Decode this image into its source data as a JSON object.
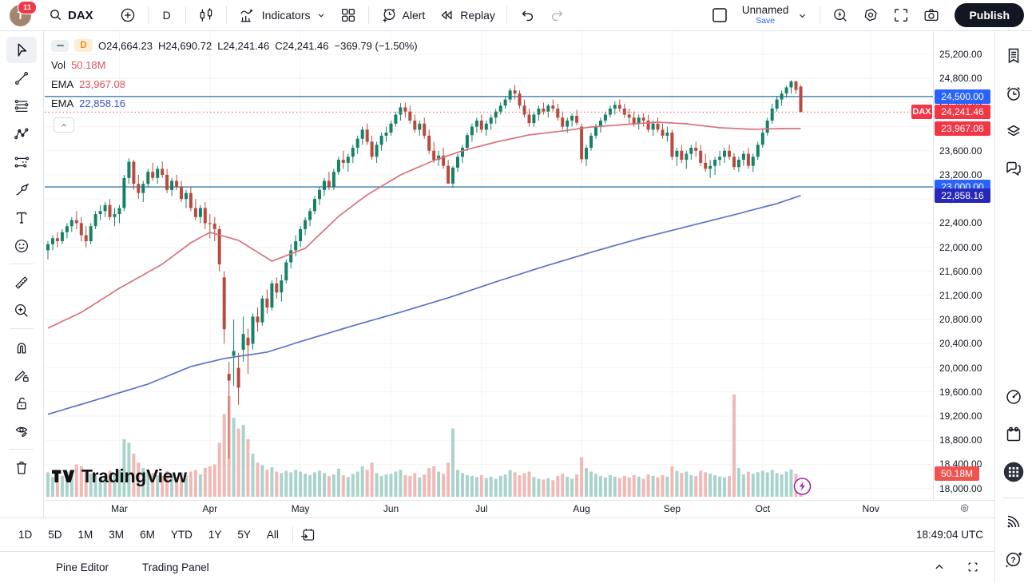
{
  "toolbar": {
    "avatar_initial": "T",
    "notifications": "11",
    "symbol": "DAX",
    "interval": "D",
    "indicators": "Indicators",
    "alert": "Alert",
    "replay": "Replay",
    "layout_name": "Unnamed",
    "save": "Save",
    "publish": "Publish"
  },
  "legend": {
    "interval": "D",
    "o": "O24,664.23",
    "h": "H24,690.72",
    "l": "L24,241.46",
    "c": "C24,241.46",
    "change": "−369.79 (−1.50%)",
    "vol_label": "Vol",
    "vol_value": "50.18M",
    "ema1_label": "EMA",
    "ema1_value": "23,967.08",
    "ema2_label": "EMA",
    "ema2_value": "22,858.16"
  },
  "watermark": "TradingView",
  "clock": "18:49:04 UTC",
  "timeframes": [
    "1D",
    "5D",
    "1M",
    "3M",
    "6M",
    "YTD",
    "1Y",
    "5Y",
    "All"
  ],
  "bottom": {
    "pine": "Pine Editor",
    "trading": "Trading Panel"
  },
  "chart_data": {
    "type": "candlestick",
    "symbol": "DAX",
    "interval": "D",
    "last_price": 24241.46,
    "volume_label": "50.18M",
    "axis": {
      "min": 18000,
      "max": 25200,
      "tick_step": 400,
      "ticks": [
        25200,
        24800,
        24400,
        24000,
        23600,
        23200,
        22800,
        22400,
        22000,
        21600,
        21200,
        20800,
        20400,
        20000,
        19600,
        19200,
        18800,
        18400,
        18000
      ],
      "tags": [
        {
          "price": 24500,
          "text": "24,500.00",
          "bg": "#2962ff"
        },
        {
          "price": 24241.46,
          "text": "24,241.46",
          "bg": "#f23645",
          "tag": "DAX"
        },
        {
          "price": 23967.08,
          "text": "23,967.08",
          "bg": "#f23645"
        },
        {
          "price": 23000,
          "text": "23,000.00",
          "bg": "#2962ff"
        },
        {
          "price": 22858.16,
          "text": "22,858.16",
          "bg": "#2828b8"
        },
        {
          "price": 18247,
          "text": "50.18M",
          "bg": "#ef5350",
          "narrow": true
        }
      ]
    },
    "months": [
      {
        "label": "Mar",
        "i": 15
      },
      {
        "label": "Apr",
        "i": 34
      },
      {
        "label": "May",
        "i": 53
      },
      {
        "label": "Jun",
        "i": 72
      },
      {
        "label": "Jul",
        "i": 91
      },
      {
        "label": "Aug",
        "i": 112
      },
      {
        "label": "Sep",
        "i": 131
      },
      {
        "label": "Oct",
        "i": 150
      },
      {
        "label": "Nov",
        "i": 172.7
      }
    ],
    "hlines": [
      {
        "price": 24500,
        "color": "#3f7cae"
      },
      {
        "price": 23000,
        "color": "#3f7cae"
      }
    ],
    "ema_red": {
      "label": "EMA",
      "value": 23967.08,
      "color": "#d9717d",
      "anchors": [
        [
          0,
          20658
        ],
        [
          7,
          20920
        ],
        [
          15,
          21320
        ],
        [
          24,
          21720
        ],
        [
          30,
          22075
        ],
        [
          34,
          22247
        ],
        [
          40,
          22115
        ],
        [
          47,
          21770
        ],
        [
          54,
          21982
        ],
        [
          61,
          22512
        ],
        [
          67,
          22870
        ],
        [
          74,
          23200
        ],
        [
          81,
          23440
        ],
        [
          87,
          23600
        ],
        [
          94,
          23744
        ],
        [
          101,
          23863
        ],
        [
          108,
          23929
        ],
        [
          114,
          23995
        ],
        [
          121,
          24035
        ],
        [
          128,
          24075
        ],
        [
          134,
          24048
        ],
        [
          141,
          23982
        ],
        [
          148,
          23956
        ],
        [
          154,
          23969
        ],
        [
          158,
          23967
        ]
      ]
    },
    "ema_blue": {
      "label": "EMA",
      "value": 22858.16,
      "color": "#5c74c6",
      "anchors": [
        [
          0,
          19230
        ],
        [
          10,
          19466
        ],
        [
          21,
          19731
        ],
        [
          30,
          20022
        ],
        [
          37,
          20155
        ],
        [
          46,
          20261
        ],
        [
          54,
          20460
        ],
        [
          64,
          20698
        ],
        [
          74,
          20923
        ],
        [
          84,
          21161
        ],
        [
          94,
          21426
        ],
        [
          104,
          21678
        ],
        [
          114,
          21916
        ],
        [
          124,
          22141
        ],
        [
          134,
          22340
        ],
        [
          144,
          22539
        ],
        [
          153,
          22724
        ],
        [
          158,
          22858
        ]
      ]
    },
    "colors": {
      "up": "#168169",
      "down": "#b84a3f",
      "vol_up": "#a9d3cc",
      "vol_down": "#f0b9b5",
      "hline": "#3f7cae",
      "last_price_line": "#e4606a",
      "boost": "#9c27b0"
    },
    "candles": [
      [
        21950,
        22100,
        21800,
        22050,
        68
      ],
      [
        22050,
        22200,
        21950,
        22150,
        55
      ],
      [
        22150,
        22250,
        22000,
        22100,
        62
      ],
      [
        22100,
        22300,
        22050,
        22250,
        58
      ],
      [
        22250,
        22400,
        22150,
        22350,
        70
      ],
      [
        22350,
        22500,
        22250,
        22450,
        66
      ],
      [
        22450,
        22600,
        22300,
        22400,
        90
      ],
      [
        22400,
        22500,
        22100,
        22200,
        85
      ],
      [
        22200,
        22350,
        22000,
        22100,
        75
      ],
      [
        22100,
        22400,
        22050,
        22350,
        64
      ],
      [
        22350,
        22600,
        22300,
        22550,
        58
      ],
      [
        22550,
        22700,
        22450,
        22600,
        52
      ],
      [
        22600,
        22750,
        22500,
        22700,
        60
      ],
      [
        22700,
        22800,
        22450,
        22500,
        72
      ],
      [
        22500,
        22650,
        22350,
        22550,
        66
      ],
      [
        22550,
        22700,
        22400,
        22650,
        74
      ],
      [
        22650,
        23200,
        22600,
        23150,
        160
      ],
      [
        23150,
        23475,
        23050,
        23419,
        150
      ],
      [
        23419,
        23450,
        22950,
        23050,
        120
      ],
      [
        23050,
        23200,
        22800,
        22900,
        95
      ],
      [
        22900,
        23100,
        22750,
        23050,
        80
      ],
      [
        23050,
        23300,
        23000,
        23250,
        70
      ],
      [
        23250,
        23400,
        23100,
        23150,
        66
      ],
      [
        23150,
        23350,
        23050,
        23300,
        60
      ],
      [
        23300,
        23420,
        23150,
        23200,
        58
      ],
      [
        23200,
        23300,
        22900,
        22950,
        72
      ],
      [
        22950,
        23150,
        22850,
        23100,
        64
      ],
      [
        23100,
        23200,
        22950,
        23000,
        55
      ],
      [
        23000,
        23100,
        22750,
        22800,
        68
      ],
      [
        22800,
        22950,
        22650,
        22900,
        60
      ],
      [
        22900,
        23000,
        22600,
        22650,
        70
      ],
      [
        22650,
        22800,
        22450,
        22500,
        75
      ],
      [
        22500,
        22700,
        22400,
        22650,
        62
      ],
      [
        22650,
        22750,
        22300,
        22400,
        80
      ],
      [
        22400,
        22550,
        22150,
        22390,
        85
      ],
      [
        22390,
        22500,
        22100,
        22300,
        90
      ],
      [
        22300,
        22350,
        21600,
        21717,
        150
      ],
      [
        21500,
        21600,
        20400,
        20641,
        230
      ],
      [
        19900,
        20100,
        18489,
        19789,
        280
      ],
      [
        20200,
        20800,
        19700,
        20280,
        220
      ],
      [
        20000,
        20250,
        19390,
        19670,
        190
      ],
      [
        20300,
        20850,
        20100,
        20562,
        200
      ],
      [
        20500,
        20650,
        19900,
        20374,
        160
      ],
      [
        20400,
        20900,
        20300,
        20850,
        120
      ],
      [
        20850,
        21000,
        20600,
        20755,
        95
      ],
      [
        20755,
        21200,
        20700,
        21150,
        88
      ],
      [
        21150,
        21300,
        20900,
        21000,
        75
      ],
      [
        21000,
        21450,
        20950,
        21400,
        82
      ],
      [
        21400,
        21500,
        21150,
        21250,
        70
      ],
      [
        21250,
        21550,
        21100,
        21450,
        66
      ],
      [
        21450,
        21800,
        21400,
        21750,
        72
      ],
      [
        21750,
        22050,
        21650,
        21950,
        68
      ],
      [
        21950,
        22200,
        21850,
        22100,
        75
      ],
      [
        22100,
        22350,
        22000,
        22300,
        70
      ],
      [
        22300,
        22500,
        22200,
        22450,
        64
      ],
      [
        22450,
        22650,
        22350,
        22600,
        60
      ],
      [
        22600,
        22850,
        22550,
        22800,
        68
      ],
      [
        22800,
        23000,
        22700,
        22950,
        72
      ],
      [
        22950,
        23150,
        22850,
        23100,
        66
      ],
      [
        23100,
        23250,
        22950,
        23000,
        58
      ],
      [
        23000,
        23300,
        22950,
        23250,
        62
      ],
      [
        23250,
        23500,
        23200,
        23450,
        78
      ],
      [
        23450,
        23600,
        23300,
        23400,
        60
      ],
      [
        23400,
        23550,
        23250,
        23500,
        55
      ],
      [
        23500,
        23700,
        23400,
        23650,
        64
      ],
      [
        23650,
        23850,
        23550,
        23800,
        70
      ],
      [
        23800,
        24000,
        23700,
        23950,
        85
      ],
      [
        23950,
        24050,
        23700,
        23750,
        75
      ],
      [
        23750,
        23850,
        23450,
        23500,
        95
      ],
      [
        23500,
        23750,
        23400,
        23700,
        66
      ],
      [
        23700,
        23900,
        23600,
        23850,
        58
      ],
      [
        23850,
        24000,
        23750,
        23900,
        62
      ],
      [
        23900,
        24100,
        23850,
        24050,
        64
      ],
      [
        24050,
        24250,
        24000,
        24200,
        70
      ],
      [
        24200,
        24390,
        24100,
        24320,
        75
      ],
      [
        24320,
        24400,
        24150,
        24250,
        60
      ],
      [
        24250,
        24350,
        24050,
        24100,
        58
      ],
      [
        24100,
        24200,
        23900,
        23950,
        66
      ],
      [
        23950,
        24100,
        23850,
        24050,
        54
      ],
      [
        24050,
        24150,
        23800,
        23850,
        62
      ],
      [
        23850,
        23950,
        23550,
        23600,
        80
      ],
      [
        23600,
        23750,
        23400,
        23450,
        85
      ],
      [
        23450,
        23600,
        23350,
        23520,
        70
      ],
      [
        23520,
        23650,
        23300,
        23350,
        64
      ],
      [
        23350,
        23450,
        23050,
        23057,
        95
      ],
      [
        23057,
        23350,
        22990,
        23320,
        190
      ],
      [
        23320,
        23550,
        23250,
        23500,
        75
      ],
      [
        23500,
        23700,
        23400,
        23650,
        66
      ],
      [
        23650,
        23900,
        23600,
        23860,
        60
      ],
      [
        23860,
        24050,
        23750,
        24000,
        58
      ],
      [
        24000,
        24150,
        23900,
        24100,
        55
      ],
      [
        24100,
        24200,
        23900,
        23950,
        60
      ],
      [
        23950,
        24100,
        23850,
        24050,
        52
      ],
      [
        24050,
        24200,
        23950,
        24150,
        56
      ],
      [
        24150,
        24300,
        24050,
        24250,
        50
      ],
      [
        24250,
        24400,
        24200,
        24350,
        58
      ],
      [
        24350,
        24500,
        24300,
        24450,
        62
      ],
      [
        24450,
        24639,
        24400,
        24600,
        74
      ],
      [
        24600,
        24690,
        24450,
        24550,
        68
      ],
      [
        24550,
        24600,
        24300,
        24350,
        60
      ],
      [
        24350,
        24450,
        24150,
        24200,
        66
      ],
      [
        24200,
        24300,
        24000,
        24060,
        70
      ],
      [
        24060,
        24250,
        24000,
        24200,
        55
      ],
      [
        24200,
        24350,
        24100,
        24300,
        50
      ],
      [
        24300,
        24400,
        24200,
        24250,
        48
      ],
      [
        24250,
        24380,
        24150,
        24350,
        52
      ],
      [
        24350,
        24450,
        24250,
        24300,
        46
      ],
      [
        24300,
        24380,
        24100,
        24150,
        58
      ],
      [
        24150,
        24250,
        23950,
        24000,
        64
      ],
      [
        24000,
        24150,
        23900,
        24100,
        56
      ],
      [
        24100,
        24220,
        24000,
        24180,
        50
      ],
      [
        24180,
        24280,
        24020,
        24065,
        62
      ],
      [
        24000,
        24050,
        23400,
        23460,
        110
      ],
      [
        23460,
        23700,
        23350,
        23650,
        80
      ],
      [
        23650,
        23900,
        23600,
        23850,
        70
      ],
      [
        23850,
        24050,
        23800,
        24000,
        64
      ],
      [
        24000,
        24150,
        23900,
        24100,
        58
      ],
      [
        24100,
        24250,
        24050,
        24200,
        54
      ],
      [
        24200,
        24350,
        24150,
        24300,
        60
      ],
      [
        24300,
        24420,
        24200,
        24360,
        56
      ],
      [
        24360,
        24450,
        24250,
        24300,
        52
      ],
      [
        24300,
        24380,
        24150,
        24200,
        58
      ],
      [
        24200,
        24300,
        24050,
        24150,
        54
      ],
      [
        24150,
        24250,
        24000,
        24050,
        60
      ],
      [
        24050,
        24200,
        23950,
        24150,
        56
      ],
      [
        24150,
        24220,
        24000,
        24100,
        50
      ],
      [
        24100,
        24200,
        23900,
        23950,
        62
      ],
      [
        23950,
        24100,
        23850,
        24050,
        58
      ],
      [
        24050,
        24150,
        23900,
        23950,
        54
      ],
      [
        23950,
        24050,
        23800,
        23850,
        60
      ],
      [
        23850,
        24000,
        23750,
        23900,
        56
      ],
      [
        23900,
        23950,
        23450,
        23500,
        85
      ],
      [
        23500,
        23650,
        23350,
        23600,
        72
      ],
      [
        23600,
        23700,
        23400,
        23450,
        66
      ],
      [
        23450,
        23600,
        23300,
        23550,
        70
      ],
      [
        23550,
        23700,
        23450,
        23650,
        60
      ],
      [
        23650,
        23750,
        23500,
        23600,
        58
      ],
      [
        23600,
        23700,
        23350,
        23400,
        72
      ],
      [
        23400,
        23550,
        23250,
        23300,
        68
      ],
      [
        23300,
        23450,
        23150,
        23350,
        64
      ],
      [
        23350,
        23500,
        23200,
        23450,
        60
      ],
      [
        23450,
        23600,
        23350,
        23500,
        56
      ],
      [
        23500,
        23650,
        23400,
        23600,
        54
      ],
      [
        23600,
        23700,
        23450,
        23500,
        58
      ],
      [
        23500,
        23560,
        23280,
        23330,
        285
      ],
      [
        23330,
        23500,
        23250,
        23450,
        80
      ],
      [
        23450,
        23600,
        23350,
        23550,
        62
      ],
      [
        23550,
        23650,
        23300,
        23350,
        70
      ],
      [
        23350,
        23550,
        23250,
        23500,
        64
      ],
      [
        23500,
        23750,
        23450,
        23700,
        68
      ],
      [
        23700,
        23950,
        23650,
        23900,
        72
      ],
      [
        23900,
        24150,
        23850,
        24100,
        68
      ],
      [
        24100,
        24380,
        24050,
        24300,
        74
      ],
      [
        24300,
        24500,
        24250,
        24450,
        66
      ],
      [
        24450,
        24600,
        24350,
        24550,
        62
      ],
      [
        24550,
        24680,
        24480,
        24650,
        70
      ],
      [
        24650,
        24771,
        24550,
        24750,
        76
      ],
      [
        24750,
        24760,
        24540,
        24611.25,
        64
      ],
      [
        24664.23,
        24690.72,
        24241.46,
        24241.46,
        50.18
      ]
    ]
  }
}
